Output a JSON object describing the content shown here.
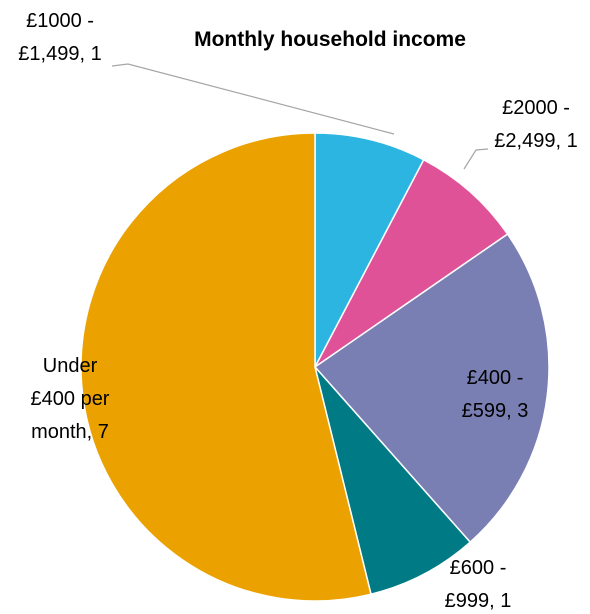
{
  "chart_data": {
    "type": "pie",
    "title": "Monthly household income",
    "values": [
      1,
      1,
      3,
      1,
      7
    ],
    "value_labels": [
      "£1000 - £1,499, 1",
      "£2000 - £2,499, 1",
      "£400 - £599, 3",
      "£600 - £999, 1",
      "Under £400 per month, 7"
    ],
    "colors": [
      "#2db5e2",
      "#df5297",
      "#7a7fb3",
      "#007b85",
      "#eba200"
    ]
  }
}
